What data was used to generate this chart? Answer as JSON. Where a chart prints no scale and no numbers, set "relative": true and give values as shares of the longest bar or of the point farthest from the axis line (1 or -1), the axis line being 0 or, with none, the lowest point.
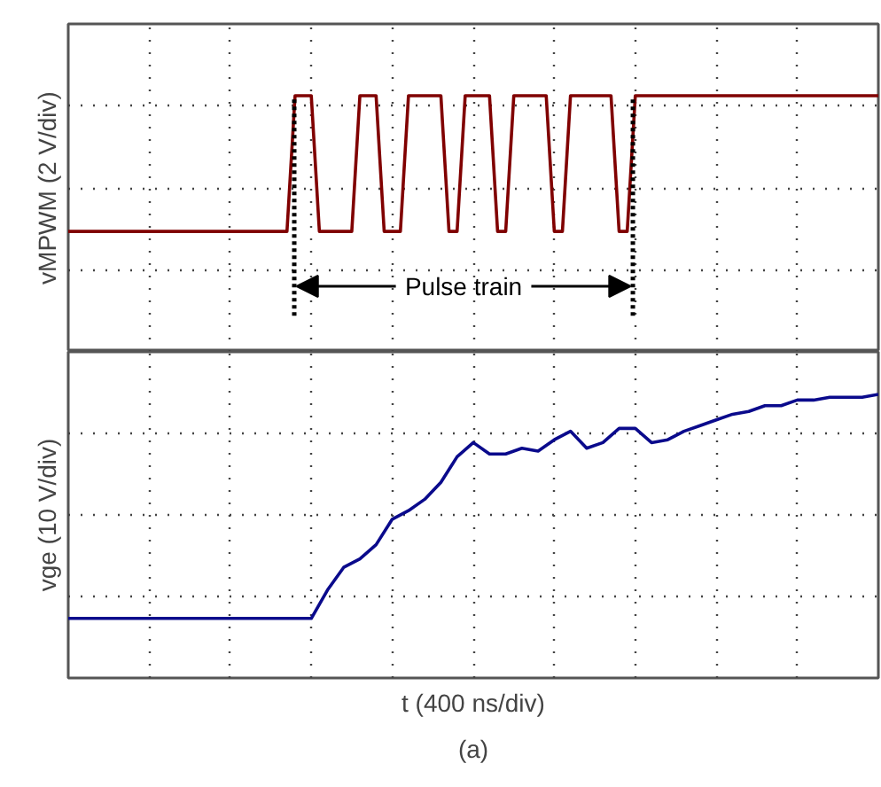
{
  "chart_data": [
    {
      "type": "line",
      "relative": true,
      "ylabel": "vMPWM (2 V/div)",
      "grid": true,
      "tick_labels": false,
      "annotations": [
        "Pulse train"
      ],
      "categories": [
        null,
        null,
        null,
        null,
        null,
        null,
        null,
        null,
        null,
        null,
        null,
        null,
        null,
        null,
        null,
        null,
        null,
        null,
        null,
        null,
        null,
        null,
        null,
        null,
        null,
        null,
        null,
        null,
        null,
        null,
        null,
        null,
        null,
        null,
        null,
        null,
        null,
        null,
        null,
        null,
        null,
        null,
        null,
        null,
        null,
        null,
        null,
        null,
        null,
        null,
        null,
        null,
        null,
        null,
        null,
        null,
        null,
        null,
        null,
        null,
        null,
        null,
        null,
        null,
        null,
        null,
        null,
        null,
        null,
        null,
        null,
        null,
        null,
        null,
        null,
        null,
        null,
        null,
        null,
        null,
        null,
        null,
        null,
        null,
        null,
        null,
        null,
        null,
        null,
        null,
        null,
        null,
        null,
        null,
        null,
        null,
        null,
        null,
        null,
        null,
        null
      ],
      "series": [
        {
          "color": "#800000",
          "values": [
            0.47,
            0.47,
            0.47,
            0.47,
            0.47,
            0.47,
            0.47,
            0.47,
            0.47,
            0.47,
            0.47,
            0.47,
            0.47,
            0.47,
            0.47,
            0.47,
            0.47,
            0.47,
            0.47,
            0.47,
            0.47,
            0.47,
            0.47,
            0.47,
            0.47,
            0.47,
            0.47,
            0.47,
            1,
            1,
            1,
            0.47,
            0.47,
            0.47,
            0.47,
            0.47,
            1,
            1,
            1,
            0.47,
            0.47,
            0.47,
            1,
            1,
            1,
            1,
            1,
            0.47,
            0.47,
            1,
            1,
            1,
            1,
            0.47,
            0.47,
            1,
            1,
            1,
            1,
            1,
            0.47,
            0.47,
            1,
            1,
            1,
            1,
            1,
            1,
            0.47,
            0.47,
            1,
            1,
            1,
            1,
            1,
            1,
            1,
            1,
            1,
            1,
            1,
            1,
            1,
            1,
            1,
            1,
            1,
            1,
            1,
            1,
            1,
            1,
            1,
            1,
            1,
            1,
            1,
            1,
            1,
            1,
            1
          ]
        }
      ]
    },
    {
      "type": "line",
      "relative": true,
      "ylabel": "vge (10 V/div)",
      "xlabel": "t (400 ns/div)",
      "grid": true,
      "tick_labels": false,
      "annotations": [
        "(a)"
      ],
      "categories": [
        null,
        null,
        null,
        null,
        null,
        null,
        null,
        null,
        null,
        null,
        null,
        null,
        null,
        null,
        null,
        null,
        null,
        null,
        null,
        null,
        null,
        null,
        null,
        null,
        null,
        null,
        null,
        null,
        null,
        null,
        null,
        null,
        null,
        null,
        null,
        null,
        null,
        null,
        null,
        null,
        null,
        null,
        null,
        null,
        null,
        null,
        null,
        null,
        null,
        null,
        null
      ],
      "series": [
        {
          "color": "#0a0a8c",
          "values": [
            0.21,
            0.21,
            0.21,
            0.21,
            0.21,
            0.21,
            0.21,
            0.21,
            0.21,
            0.21,
            0.21,
            0.21,
            0.21,
            0.21,
            0.21,
            0.21,
            0.31,
            0.39,
            0.42,
            0.47,
            0.56,
            0.59,
            0.63,
            0.69,
            0.78,
            0.83,
            0.79,
            0.79,
            0.81,
            0.8,
            0.84,
            0.87,
            0.81,
            0.83,
            0.88,
            0.88,
            0.83,
            0.84,
            0.87,
            0.89,
            0.91,
            0.93,
            0.94,
            0.96,
            0.96,
            0.98,
            0.98,
            0.99,
            0.99,
            0.99,
            1
          ]
        }
      ]
    }
  ]
}
